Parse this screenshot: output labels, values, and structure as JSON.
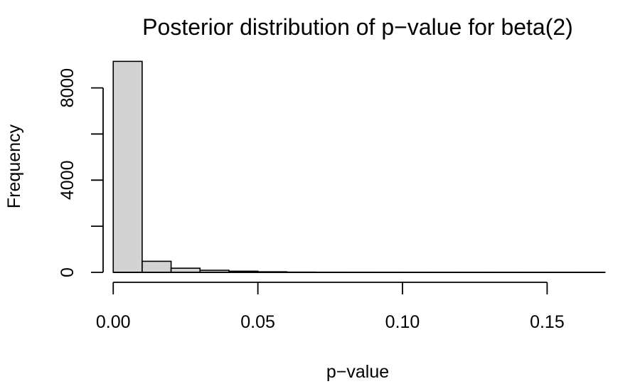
{
  "chart_data": {
    "type": "bar",
    "title": "Posterior distribution of p−value for beta(2)",
    "xlabel": "p−value",
    "ylabel": "Frequency",
    "bins": [
      {
        "start": 0.0,
        "end": 0.01,
        "count": 9150
      },
      {
        "start": 0.01,
        "end": 0.02,
        "count": 480
      },
      {
        "start": 0.02,
        "end": 0.03,
        "count": 180
      },
      {
        "start": 0.03,
        "end": 0.04,
        "count": 90
      },
      {
        "start": 0.04,
        "end": 0.05,
        "count": 50
      },
      {
        "start": 0.05,
        "end": 0.06,
        "count": 25
      },
      {
        "start": 0.06,
        "end": 0.07,
        "count": 10
      },
      {
        "start": 0.07,
        "end": 0.08,
        "count": 5
      },
      {
        "start": 0.08,
        "end": 0.09,
        "count": 3
      },
      {
        "start": 0.09,
        "end": 0.1,
        "count": 2
      },
      {
        "start": 0.1,
        "end": 0.11,
        "count": 1
      },
      {
        "start": 0.11,
        "end": 0.12,
        "count": 1
      },
      {
        "start": 0.12,
        "end": 0.13,
        "count": 1
      },
      {
        "start": 0.13,
        "end": 0.14,
        "count": 1
      },
      {
        "start": 0.14,
        "end": 0.15,
        "count": 1
      },
      {
        "start": 0.15,
        "end": 0.16,
        "count": 1
      },
      {
        "start": 0.16,
        "end": 0.17,
        "count": 1
      }
    ],
    "xticks": [
      0.0,
      0.05,
      0.1,
      0.15
    ],
    "xtick_labels": [
      "0.00",
      "0.05",
      "0.10",
      "0.15"
    ],
    "yticks": [
      0,
      2000,
      4000,
      6000,
      8000
    ],
    "ytick_labels": [
      "0",
      "",
      "4000",
      "",
      "8000"
    ],
    "xlim": [
      -0.0035,
      0.1735
    ],
    "ylim": [
      -370,
      9530
    ],
    "bar_color": "#d3d3d3",
    "grid": false,
    "legend": "none"
  }
}
